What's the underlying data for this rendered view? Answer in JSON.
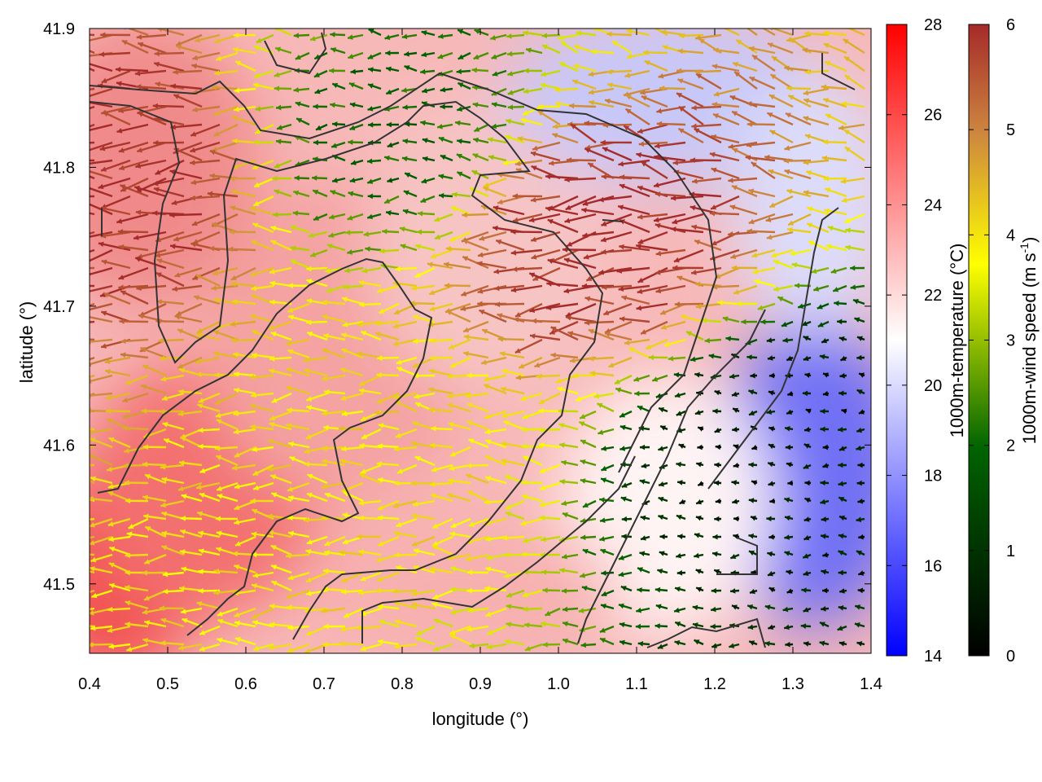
{
  "chart_data": {
    "type": "heatmap",
    "title": "",
    "xlabel": "longitude (°)",
    "ylabel": "latitude (°)",
    "xlim": [
      0.4,
      1.4
    ],
    "ylim": [
      41.45,
      41.9
    ],
    "xticks": [
      "0.4",
      "0.5",
      "0.6",
      "0.7",
      "0.8",
      "0.9",
      "1.0",
      "1.1",
      "1.2",
      "1.3",
      "1.4"
    ],
    "yticks": [
      "41.5",
      "41.6",
      "41.7",
      "41.8",
      "41.9"
    ],
    "temperature_colorbar": {
      "label": "1000m-temperature (°C)",
      "range": [
        14,
        28
      ],
      "ticks": [
        "14",
        "16",
        "18",
        "20",
        "22",
        "24",
        "26",
        "28"
      ],
      "colors": [
        "#0000ff",
        "#ffffff",
        "#ff0000"
      ]
    },
    "wind_colorbar": {
      "label_main": "1000m-wind speed (m s",
      "label_sup": "-1",
      "label_end": ")",
      "range": [
        0,
        6
      ],
      "ticks": [
        "0",
        "1",
        "2",
        "3",
        "4",
        "5",
        "6"
      ],
      "colors": [
        "#000000",
        "#006400",
        "#ffff00",
        "#cd853f",
        "#a52a2a"
      ]
    },
    "temperature_field_approx": [
      {
        "lon": 0.45,
        "lat": 41.85,
        "t": 24
      },
      {
        "lon": 0.45,
        "lat": 41.5,
        "t": 27
      },
      {
        "lon": 0.6,
        "lat": 41.6,
        "t": 25
      },
      {
        "lon": 0.8,
        "lat": 41.75,
        "t": 23
      },
      {
        "lon": 1.15,
        "lat": 41.85,
        "t": 18
      },
      {
        "lon": 1.3,
        "lat": 41.58,
        "t": 16
      },
      {
        "lon": 1.35,
        "lat": 41.75,
        "t": 19
      }
    ],
    "wind_speed_approx": [
      {
        "lon": 0.45,
        "lat": 41.8,
        "ws": 6
      },
      {
        "lon": 0.78,
        "lat": 41.6,
        "ws": 4
      },
      {
        "lon": 0.8,
        "lat": 41.82,
        "ws": 2
      },
      {
        "lon": 1.05,
        "lat": 41.75,
        "ws": 6
      },
      {
        "lon": 1.3,
        "lat": 41.6,
        "ws": 0.5
      }
    ]
  }
}
